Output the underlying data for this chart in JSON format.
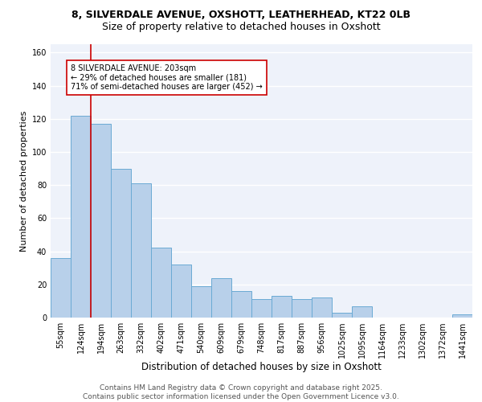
{
  "title1": "8, SILVERDALE AVENUE, OXSHOTT, LEATHERHEAD, KT22 0LB",
  "title2": "Size of property relative to detached houses in Oxshott",
  "xlabel": "Distribution of detached houses by size in Oxshott",
  "ylabel": "Number of detached properties",
  "categories": [
    "55sqm",
    "124sqm",
    "194sqm",
    "263sqm",
    "332sqm",
    "402sqm",
    "471sqm",
    "540sqm",
    "609sqm",
    "679sqm",
    "748sqm",
    "817sqm",
    "887sqm",
    "956sqm",
    "1025sqm",
    "1095sqm",
    "1164sqm",
    "1233sqm",
    "1302sqm",
    "1372sqm",
    "1441sqm"
  ],
  "values": [
    36,
    122,
    117,
    90,
    81,
    42,
    32,
    19,
    24,
    16,
    11,
    13,
    11,
    12,
    3,
    7,
    0,
    0,
    0,
    0,
    2
  ],
  "bar_color": "#b8d0ea",
  "bar_edge_color": "#6aaad4",
  "red_line_index": 2,
  "red_line_color": "#cc0000",
  "annotation_text": "8 SILVERDALE AVENUE: 203sqm\n← 29% of detached houses are smaller (181)\n71% of semi-detached houses are larger (452) →",
  "annotation_box_color": "white",
  "annotation_box_edge": "#cc0000",
  "ylim": [
    0,
    165
  ],
  "yticks": [
    0,
    20,
    40,
    60,
    80,
    100,
    120,
    140,
    160
  ],
  "background_color": "#eef2fa",
  "grid_color": "white",
  "footer": "Contains HM Land Registry data © Crown copyright and database right 2025.\nContains public sector information licensed under the Open Government Licence v3.0.",
  "title1_fontsize": 9,
  "title2_fontsize": 9,
  "xlabel_fontsize": 8.5,
  "ylabel_fontsize": 8,
  "annotation_fontsize": 7,
  "footer_fontsize": 6.5,
  "tick_fontsize": 7
}
